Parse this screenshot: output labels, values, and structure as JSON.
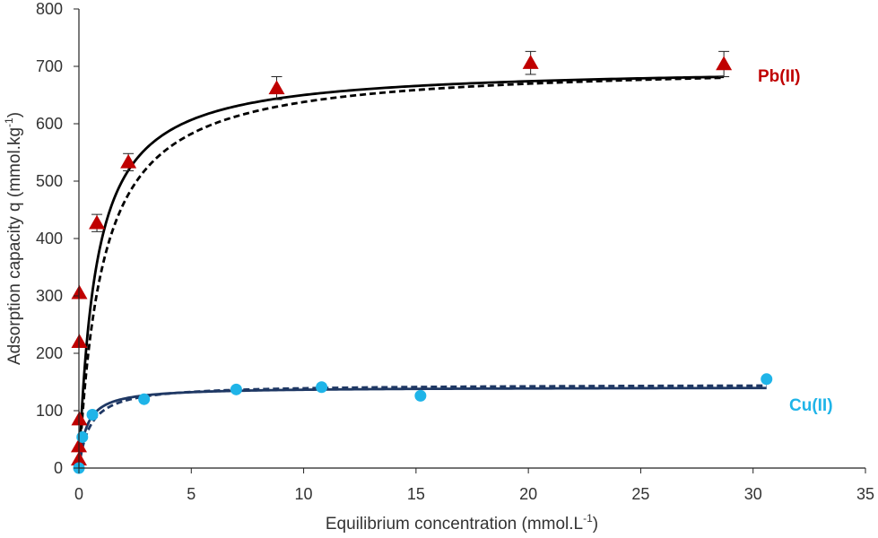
{
  "chart_data": {
    "type": "scatter",
    "xlabel": "Equilibrium concentration (mmol.L",
    "xlabel_sup": "-1",
    "xlabel_end": ")",
    "ylabel": "Adsorption capacity q (mmol.kg",
    "ylabel_sup": "-1",
    "ylabel_end": ")",
    "xlim": [
      0,
      35
    ],
    "ylim": [
      0,
      800
    ],
    "xticks": [
      "0",
      "5",
      "10",
      "15",
      "20",
      "25",
      "30",
      "35"
    ],
    "yticks": [
      "0",
      "100",
      "200",
      "300",
      "400",
      "500",
      "600",
      "700",
      "800"
    ],
    "grid": false,
    "series": [
      {
        "name": "Pb(II)",
        "label_color": "#c00000",
        "marker": "triangle",
        "marker_color": "#c00000",
        "points": [
          {
            "x": 0.0,
            "y": 15
          },
          {
            "x": 0.0,
            "y": 38
          },
          {
            "x": 0.02,
            "y": 85
          },
          {
            "x": 0.02,
            "y": 220
          },
          {
            "x": 0.02,
            "y": 305
          },
          {
            "x": 0.8,
            "y": 427,
            "err": 15
          },
          {
            "x": 2.2,
            "y": 533,
            "err": 15
          },
          {
            "x": 8.8,
            "y": 662,
            "err": 20
          },
          {
            "x": 20.1,
            "y": 706,
            "err": 20
          },
          {
            "x": 28.7,
            "y": 704,
            "err": 22
          }
        ],
        "fit_solid": {
          "qmax": 700,
          "K": 1.3
        },
        "fit_dashed": {
          "qmax": 705,
          "K": 0.95
        },
        "fit_color": "#000000"
      },
      {
        "name": "Cu(II)",
        "label_color": "#1fb4e8",
        "marker": "circle",
        "marker_color": "#1fb4e8",
        "points": [
          {
            "x": 0.0,
            "y": 0
          },
          {
            "x": 0.15,
            "y": 54
          },
          {
            "x": 0.6,
            "y": 93
          },
          {
            "x": 2.9,
            "y": 120
          },
          {
            "x": 7.0,
            "y": 137
          },
          {
            "x": 10.8,
            "y": 141
          },
          {
            "x": 15.2,
            "y": 126
          },
          {
            "x": 30.6,
            "y": 155
          }
        ],
        "fit_solid": {
          "qmax": 141,
          "K": 3.0
        },
        "fit_dashed": {
          "qmax": 146,
          "K": 2.0
        },
        "fit_color": "#1f3864"
      }
    ]
  }
}
